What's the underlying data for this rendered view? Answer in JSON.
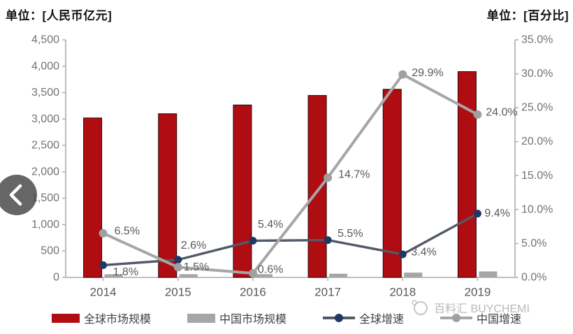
{
  "header": {
    "left_unit_title": "单位：[人民币亿元]",
    "right_unit_title": "单位：[百分比]"
  },
  "chart_data": {
    "type": "combo-bar-line",
    "categories": [
      "2014",
      "2015",
      "2016",
      "2017",
      "2018",
      "2019"
    ],
    "left_axis": {
      "unit": "人民币亿元",
      "min": 0,
      "max": 4500,
      "step": 500,
      "tick_labels": [
        "0",
        "500",
        "1,000",
        "1,500",
        "2,000",
        "2,500",
        "3,000",
        "3,500",
        "4,000",
        "4,500"
      ]
    },
    "right_axis": {
      "unit": "百分比",
      "min": 0,
      "max": 35,
      "step": 5,
      "tick_labels": [
        "0.0%",
        "5.0%",
        "10.0%",
        "15.0%",
        "20.0%",
        "25.0%",
        "30.0%",
        "35.0%"
      ]
    },
    "series": [
      {
        "name": "全球市场规模",
        "type": "bar",
        "axis": "left",
        "color": "#AF0D11",
        "values": [
          3020,
          3100,
          3266,
          3446,
          3563,
          3898
        ]
      },
      {
        "name": "中国市场规模",
        "type": "bar",
        "axis": "left",
        "color": "#A6A6A6",
        "values": [
          60,
          61,
          61,
          70,
          91,
          113
        ]
      },
      {
        "name": "全球增速",
        "type": "line",
        "axis": "right",
        "line_color": "#525A66",
        "marker_color": "#1F3864",
        "values": [
          1.8,
          2.6,
          5.4,
          5.5,
          3.4,
          9.4
        ],
        "point_labels": [
          "1.8%",
          "2.6%",
          "5.4%",
          "5.5%",
          "3.4%",
          "9.4%"
        ]
      },
      {
        "name": "中国增速",
        "type": "line",
        "axis": "right",
        "line_color": "#A6A6A6",
        "marker_color": "#A0A0A0",
        "values": [
          6.5,
          1.5,
          0.6,
          14.7,
          29.9,
          24.0
        ],
        "point_labels": [
          "6.5%",
          "1.5%",
          "0.6%",
          "14.7%",
          "29.9%",
          "24.0%"
        ]
      }
    ],
    "grid": "off",
    "legend_position": "bottom"
  },
  "watermark": {
    "text": "百料汇 BUYCHEMI"
  },
  "colors": {
    "axis_line": "#ABABAB",
    "tick_label": "#737373",
    "category_label": "#595959",
    "data_label": "#595959",
    "back_button": "#4B4B4B"
  }
}
